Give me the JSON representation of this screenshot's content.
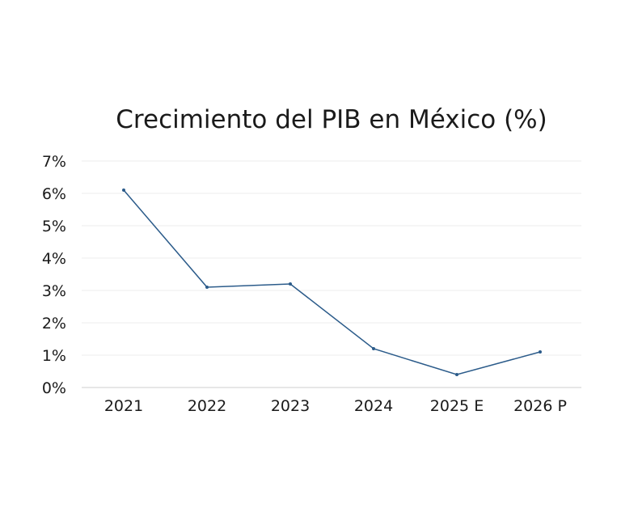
{
  "chart_data": {
    "type": "line",
    "title": "Crecimiento del PIB en México (%)",
    "xlabel": "",
    "ylabel": "",
    "categories": [
      "2021",
      "2022",
      "2023",
      "2024",
      "2025 E",
      "2026 P"
    ],
    "series": [
      {
        "values": [
          6.1,
          3.1,
          3.2,
          1.2,
          0.4,
          1.1
        ]
      }
    ],
    "ylim": [
      0,
      7
    ],
    "y_ticks": [
      "0%",
      "1%",
      "2%",
      "3%",
      "4%",
      "5%",
      "6%",
      "7%"
    ],
    "grid": true,
    "legend": "none",
    "colors": {
      "line": "#2b5b8a",
      "grid": "#ececec",
      "text": "#1a1a1a"
    }
  }
}
